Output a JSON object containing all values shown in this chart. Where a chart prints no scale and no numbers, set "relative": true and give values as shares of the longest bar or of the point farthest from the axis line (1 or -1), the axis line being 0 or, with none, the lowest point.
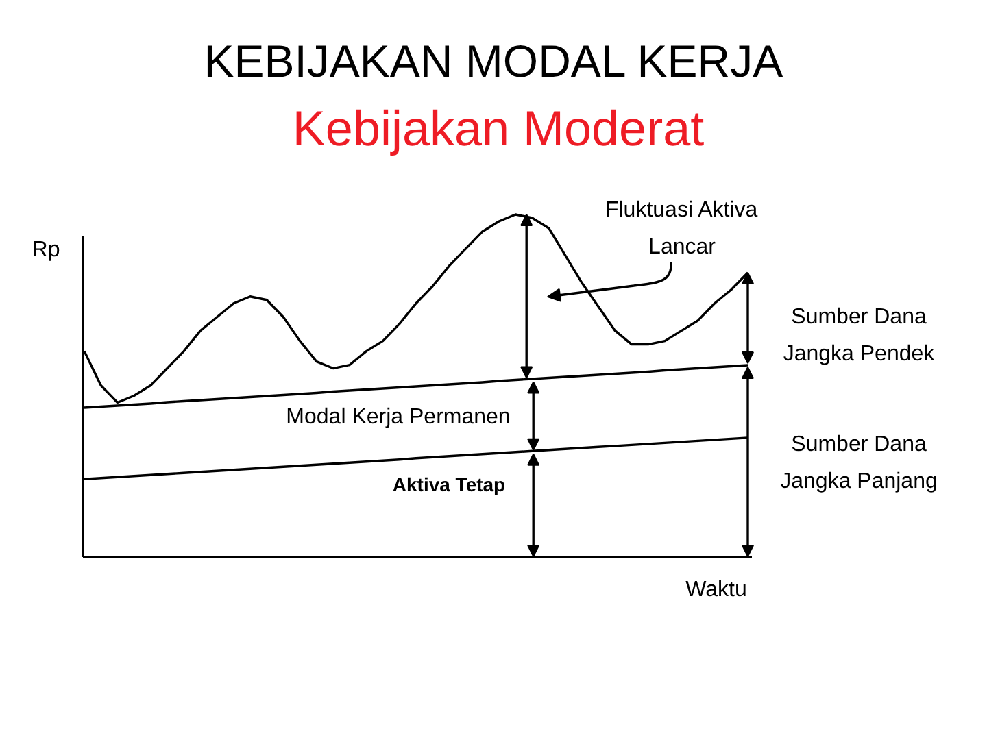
{
  "chart_data": {
    "type": "line",
    "title": "KEBIJAKAN MODAL KERJA",
    "subtitle": "Kebijakan Moderat",
    "xlabel": "Waktu",
    "ylabel": "Rp",
    "annotations": [
      "Fluktuasi Aktiva Lancar",
      "Sumber Dana Jangka Pendek",
      "Modal Kerja Permanen",
      "Sumber Dana Jangka Panjang",
      "Aktiva Tetap"
    ],
    "categories": [
      null,
      null,
      null,
      null,
      null,
      null,
      null,
      null,
      null,
      null,
      null,
      null,
      null,
      null,
      null,
      null,
      null,
      null,
      null,
      null,
      null,
      null,
      null,
      null,
      null,
      null,
      null,
      null,
      null,
      null,
      null,
      null,
      null,
      null,
      null,
      null,
      null,
      null,
      null,
      null,
      null
    ],
    "series": [
      {
        "color": "#000000",
        "values": [
          0.6,
          0.5,
          0.45,
          0.47,
          0.5,
          0.55,
          0.6,
          0.66,
          0.7,
          0.74,
          0.76,
          0.75,
          0.7,
          0.63,
          0.57,
          0.55,
          0.56,
          0.6,
          0.63,
          0.68,
          0.74,
          0.79,
          0.85,
          0.9,
          0.95,
          0.98,
          1.0,
          0.99,
          0.96,
          0.88,
          0.8,
          0.73,
          0.66,
          0.62,
          0.62,
          0.63,
          0.66,
          0.69,
          0.74,
          0.78,
          0.83
        ]
      },
      {
        "color": "#000000",
        "values": [
          0.435,
          0.438,
          0.441,
          0.444,
          0.447,
          0.451,
          0.454,
          0.457,
          0.46,
          0.463,
          0.466,
          0.469,
          0.472,
          0.475,
          0.478,
          0.482,
          0.485,
          0.488,
          0.491,
          0.494,
          0.497,
          0.5,
          0.503,
          0.506,
          0.509,
          0.513,
          0.516,
          0.519,
          0.522,
          0.525,
          0.528,
          0.531,
          0.534,
          0.537,
          0.54,
          0.544,
          0.547,
          0.55,
          0.553,
          0.556,
          0.559
        ]
      },
      {
        "color": "#000000",
        "values": [
          0.226,
          0.229,
          0.232,
          0.235,
          0.238,
          0.241,
          0.244,
          0.247,
          0.25,
          0.253,
          0.256,
          0.259,
          0.262,
          0.265,
          0.268,
          0.271,
          0.274,
          0.277,
          0.28,
          0.283,
          0.287,
          0.29,
          0.293,
          0.296,
          0.299,
          0.302,
          0.305,
          0.308,
          0.311,
          0.314,
          0.317,
          0.32,
          0.323,
          0.326,
          0.329,
          0.332,
          0.335,
          0.338,
          0.341,
          0.344,
          0.347
        ]
      }
    ],
    "relative": true
  }
}
